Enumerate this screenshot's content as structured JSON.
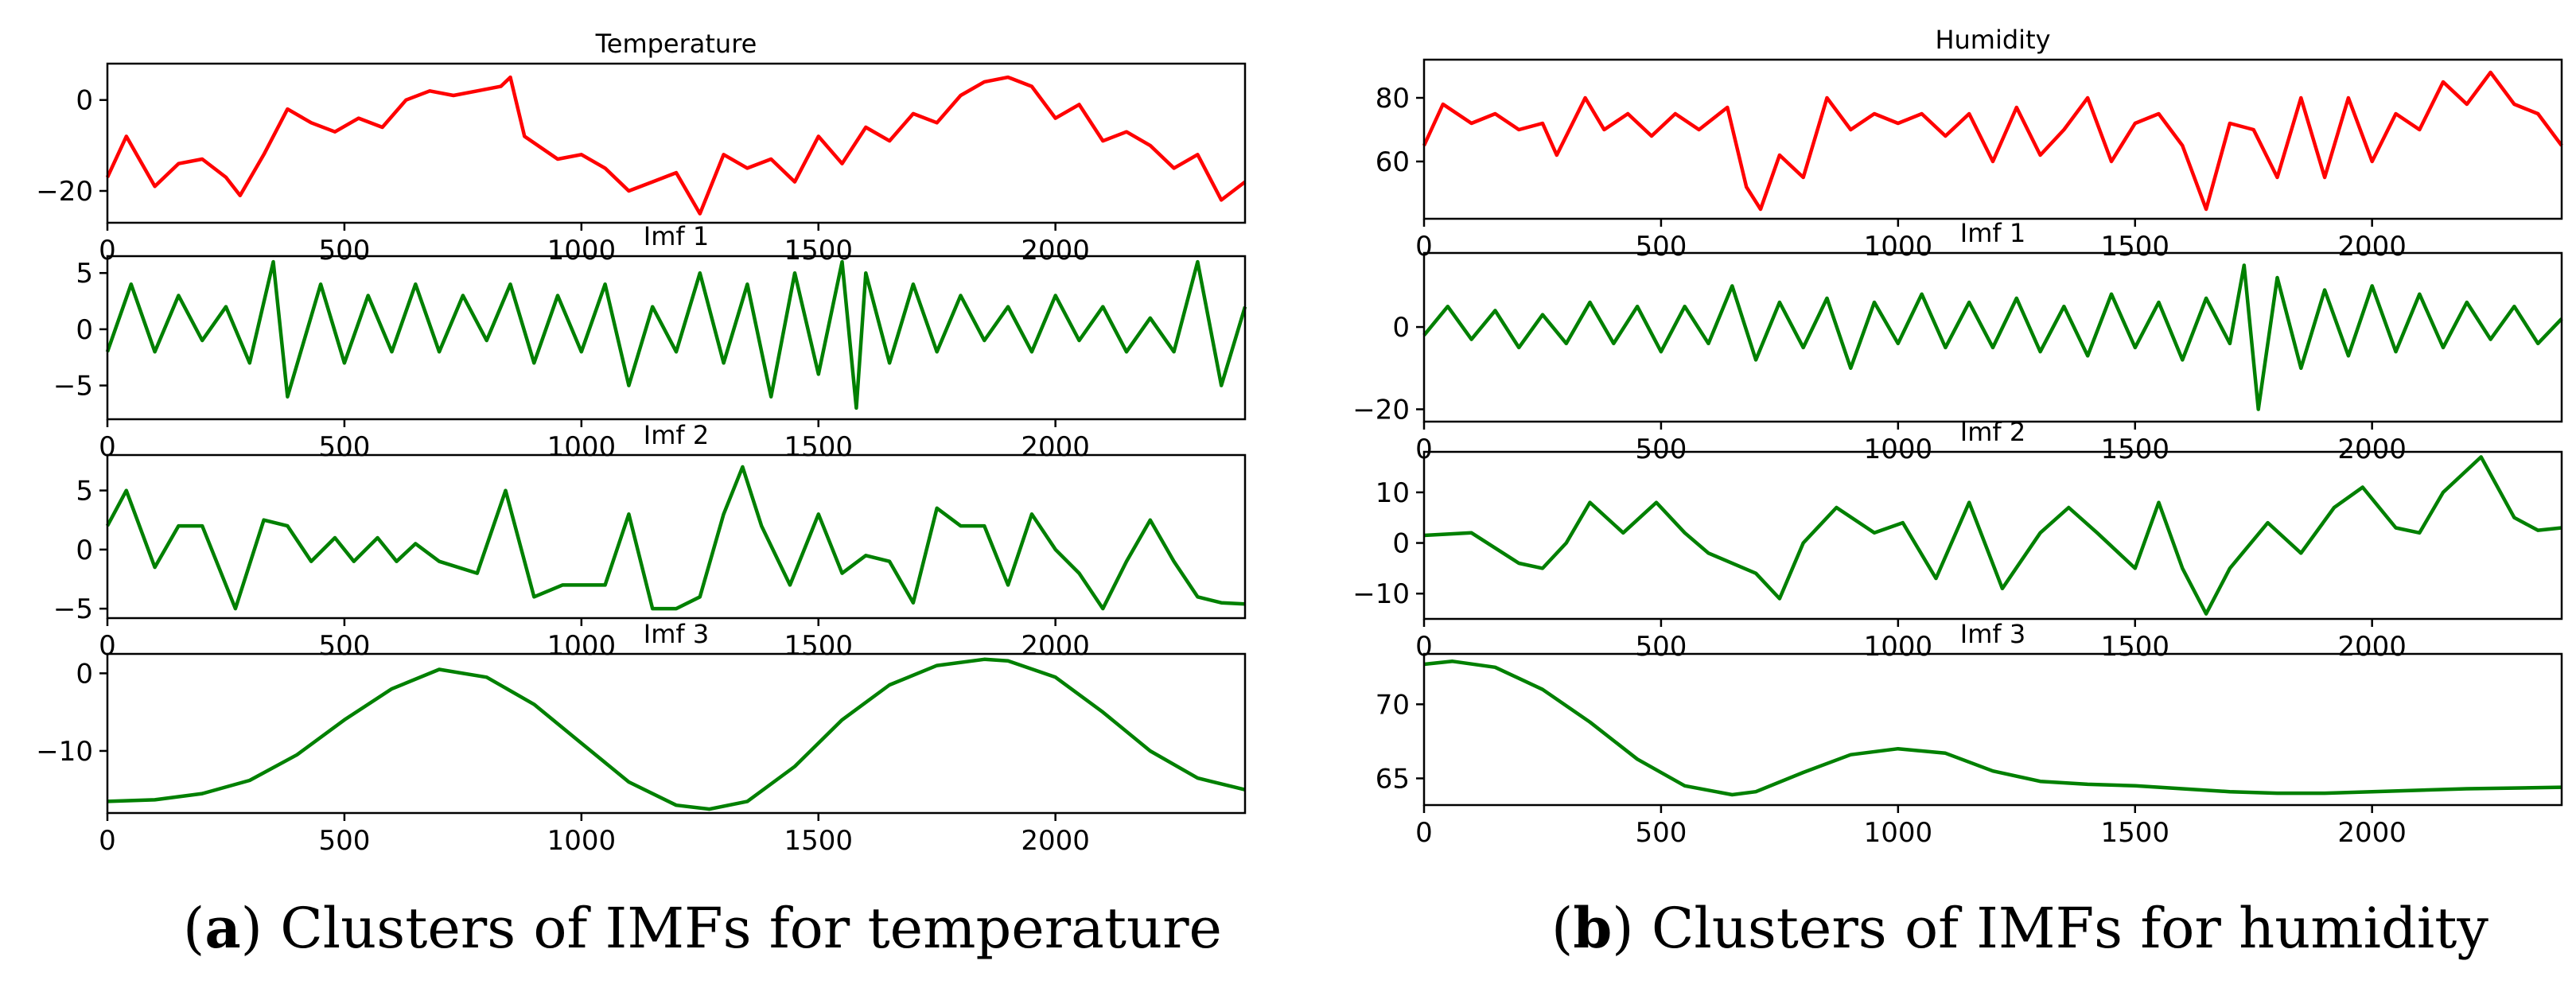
{
  "colors": {
    "signal": "#ff0000",
    "imf": "#008000",
    "axis": "#000000"
  },
  "captions": [
    {
      "label": "a",
      "text": "Clusters of IMFs for temperature"
    },
    {
      "label": "b",
      "text": "Clusters of IMFs for humidity"
    }
  ],
  "chart_data": [
    {
      "type": "line",
      "title": "Temperature",
      "xlabel": "",
      "ylabel": "",
      "xlim": [
        0,
        2400
      ],
      "ylim": [
        -27,
        8
      ],
      "xticks": [
        0,
        500,
        1000,
        1500,
        2000
      ],
      "yticks": [
        0,
        -20
      ],
      "series": [
        {
          "name": "Temperature",
          "color": "#ff0000",
          "x": [
            0,
            40,
            100,
            150,
            200,
            250,
            280,
            330,
            380,
            430,
            480,
            530,
            580,
            630,
            680,
            730,
            780,
            830,
            850,
            880,
            950,
            1000,
            1050,
            1100,
            1150,
            1200,
            1250,
            1300,
            1350,
            1400,
            1450,
            1500,
            1550,
            1600,
            1650,
            1700,
            1750,
            1800,
            1850,
            1900,
            1950,
            2000,
            2050,
            2100,
            2150,
            2200,
            2250,
            2300,
            2350,
            2400
          ],
          "values": [
            -17,
            -8,
            -19,
            -14,
            -13,
            -17,
            -21,
            -12,
            -2,
            -5,
            -7,
            -4,
            -6,
            0,
            2,
            1,
            2,
            3,
            5,
            -8,
            -13,
            -12,
            -15,
            -20,
            -18,
            -16,
            -25,
            -12,
            -15,
            -13,
            -18,
            -8,
            -14,
            -6,
            -9,
            -3,
            -5,
            1,
            4,
            5,
            3,
            -4,
            -1,
            -9,
            -7,
            -10,
            -15,
            -12,
            -22,
            -18
          ]
        }
      ]
    },
    {
      "type": "line",
      "title": "Imf 1",
      "xlabel": "",
      "ylabel": "",
      "xlim": [
        0,
        2400
      ],
      "ylim": [
        -8,
        6.5
      ],
      "xticks": [
        0,
        500,
        1000,
        1500,
        2000
      ],
      "yticks": [
        5,
        0,
        -5
      ],
      "series": [
        {
          "name": "Imf 1",
          "color": "#008000",
          "x": [
            0,
            50,
            100,
            150,
            200,
            250,
            300,
            350,
            380,
            450,
            500,
            550,
            600,
            650,
            700,
            750,
            800,
            850,
            900,
            950,
            1000,
            1050,
            1100,
            1150,
            1200,
            1250,
            1300,
            1350,
            1400,
            1450,
            1500,
            1550,
            1580,
            1600,
            1650,
            1700,
            1750,
            1800,
            1850,
            1900,
            1950,
            2000,
            2050,
            2100,
            2150,
            2200,
            2250,
            2300,
            2350,
            2400
          ],
          "values": [
            -2,
            4,
            -2,
            3,
            -1,
            2,
            -3,
            6,
            -6,
            4,
            -3,
            3,
            -2,
            4,
            -2,
            3,
            -1,
            4,
            -3,
            3,
            -2,
            4,
            -5,
            2,
            -2,
            5,
            -3,
            4,
            -6,
            5,
            -4,
            6,
            -7,
            5,
            -3,
            4,
            -2,
            3,
            -1,
            2,
            -2,
            3,
            -1,
            2,
            -2,
            1,
            -2,
            6,
            -5,
            2
          ]
        }
      ]
    },
    {
      "type": "line",
      "title": "Imf 2",
      "xlabel": "",
      "ylabel": "",
      "xlim": [
        0,
        2400
      ],
      "ylim": [
        -5.8,
        8
      ],
      "xticks": [
        0,
        500,
        1000,
        1500,
        2000
      ],
      "yticks": [
        5,
        0,
        -5
      ],
      "series": [
        {
          "name": "Imf 2",
          "color": "#008000",
          "x": [
            0,
            40,
            100,
            150,
            200,
            270,
            330,
            380,
            430,
            480,
            520,
            570,
            610,
            650,
            700,
            780,
            840,
            900,
            960,
            1000,
            1050,
            1100,
            1150,
            1200,
            1250,
            1300,
            1340,
            1380,
            1440,
            1500,
            1550,
            1600,
            1650,
            1700,
            1750,
            1800,
            1850,
            1900,
            1950,
            2000,
            2050,
            2100,
            2150,
            2200,
            2250,
            2300,
            2350,
            2400
          ],
          "values": [
            2,
            5,
            -1.5,
            2,
            2,
            -5,
            2.5,
            2,
            -1,
            1,
            -1,
            1,
            -1,
            0.5,
            -1,
            -2,
            5,
            -4,
            -3,
            -3,
            -3,
            3,
            -5,
            -5,
            -4,
            3,
            7,
            2,
            -3,
            3,
            -2,
            -0.5,
            -1,
            -4.5,
            3.5,
            2,
            2,
            -3,
            3,
            0,
            -2,
            -5,
            -1,
            2.5,
            -1,
            -4,
            -4.5,
            -4.6
          ]
        }
      ]
    },
    {
      "type": "line",
      "title": "Imf 3",
      "xlabel": "",
      "ylabel": "",
      "xlim": [
        0,
        2400
      ],
      "ylim": [
        -18,
        2.5
      ],
      "xticks": [
        0,
        500,
        1000,
        1500,
        2000
      ],
      "yticks": [
        0,
        -10
      ],
      "series": [
        {
          "name": "Imf 3",
          "color": "#008000",
          "x": [
            0,
            100,
            200,
            300,
            400,
            500,
            600,
            700,
            800,
            900,
            1000,
            1100,
            1200,
            1270,
            1350,
            1450,
            1550,
            1650,
            1750,
            1850,
            1900,
            2000,
            2100,
            2200,
            2300,
            2400
          ],
          "values": [
            -16.5,
            -16.3,
            -15.5,
            -13.8,
            -10.5,
            -6,
            -2,
            0.5,
            -0.5,
            -4,
            -9,
            -14,
            -17,
            -17.5,
            -16.5,
            -12,
            -6,
            -1.5,
            1,
            1.8,
            1.6,
            -0.5,
            -5,
            -10,
            -13.5,
            -15
          ]
        }
      ]
    },
    {
      "type": "line",
      "title": "Humidity",
      "xlabel": "",
      "ylabel": "",
      "xlim": [
        0,
        2400
      ],
      "ylim": [
        42,
        92
      ],
      "xticks": [
        0,
        500,
        1000,
        1500,
        2000
      ],
      "yticks": [
        80,
        60
      ],
      "series": [
        {
          "name": "Humidity",
          "color": "#ff0000",
          "x": [
            0,
            40,
            100,
            150,
            200,
            250,
            280,
            340,
            380,
            430,
            480,
            530,
            580,
            640,
            680,
            710,
            750,
            800,
            850,
            900,
            950,
            1000,
            1050,
            1100,
            1150,
            1200,
            1250,
            1300,
            1350,
            1400,
            1450,
            1500,
            1550,
            1600,
            1650,
            1700,
            1750,
            1800,
            1850,
            1900,
            1950,
            2000,
            2050,
            2100,
            2150,
            2200,
            2250,
            2300,
            2350,
            2400
          ],
          "values": [
            65,
            78,
            72,
            75,
            70,
            72,
            62,
            80,
            70,
            75,
            68,
            75,
            70,
            77,
            52,
            45,
            62,
            55,
            80,
            70,
            75,
            72,
            75,
            68,
            75,
            60,
            77,
            62,
            70,
            80,
            60,
            72,
            75,
            65,
            45,
            72,
            70,
            55,
            80,
            55,
            80,
            60,
            75,
            70,
            85,
            78,
            88,
            78,
            75,
            65
          ]
        }
      ]
    },
    {
      "type": "line",
      "title": "Imf 1",
      "xlabel": "",
      "ylabel": "",
      "xlim": [
        0,
        2400
      ],
      "ylim": [
        -23,
        18
      ],
      "xticks": [
        0,
        500,
        1000,
        1500,
        2000
      ],
      "yticks": [
        0,
        -20
      ],
      "series": [
        {
          "name": "Imf 1",
          "color": "#008000",
          "x": [
            0,
            50,
            100,
            150,
            200,
            250,
            300,
            350,
            400,
            450,
            500,
            550,
            600,
            650,
            700,
            750,
            800,
            850,
            900,
            950,
            1000,
            1050,
            1100,
            1150,
            1200,
            1250,
            1300,
            1350,
            1400,
            1450,
            1500,
            1550,
            1600,
            1650,
            1700,
            1730,
            1760,
            1800,
            1850,
            1900,
            1950,
            2000,
            2050,
            2100,
            2150,
            2200,
            2250,
            2300,
            2350,
            2400
          ],
          "values": [
            -2,
            5,
            -3,
            4,
            -5,
            3,
            -4,
            6,
            -4,
            5,
            -6,
            5,
            -4,
            10,
            -8,
            6,
            -5,
            7,
            -10,
            6,
            -4,
            8,
            -5,
            6,
            -5,
            7,
            -6,
            5,
            -7,
            8,
            -5,
            6,
            -8,
            7,
            -4,
            15,
            -20,
            12,
            -10,
            9,
            -7,
            10,
            -6,
            8,
            -5,
            6,
            -3,
            5,
            -4,
            2
          ]
        }
      ]
    },
    {
      "type": "line",
      "title": "Imf 2",
      "xlabel": "",
      "ylabel": "",
      "xlim": [
        0,
        2400
      ],
      "ylim": [
        -15,
        18
      ],
      "xticks": [
        0,
        500,
        1000,
        1500,
        2000
      ],
      "yticks": [
        10,
        0,
        -10
      ],
      "series": [
        {
          "name": "Imf 2",
          "color": "#008000",
          "x": [
            0,
            100,
            200,
            250,
            300,
            350,
            420,
            490,
            550,
            600,
            700,
            750,
            800,
            870,
            950,
            1010,
            1080,
            1150,
            1220,
            1300,
            1360,
            1420,
            1500,
            1550,
            1600,
            1650,
            1700,
            1780,
            1850,
            1920,
            1980,
            2050,
            2100,
            2150,
            2230,
            2300,
            2350,
            2400
          ],
          "values": [
            1.5,
            2,
            -4,
            -5,
            0,
            8,
            2,
            8,
            2,
            -2,
            -6,
            -11,
            0,
            7,
            2,
            4,
            -7,
            8,
            -9,
            2,
            7,
            2,
            -5,
            8,
            -5,
            -14,
            -5,
            4,
            -2,
            7,
            11,
            3,
            2,
            10,
            17,
            5,
            2.5,
            3
          ]
        }
      ]
    },
    {
      "type": "line",
      "title": "Imf 3",
      "xlabel": "",
      "ylabel": "",
      "xlim": [
        0,
        2400
      ],
      "ylim": [
        63.2,
        73.4
      ],
      "xticks": [
        0,
        500,
        1000,
        1500,
        2000
      ],
      "yticks": [
        70,
        65
      ],
      "series": [
        {
          "name": "Imf 3",
          "color": "#008000",
          "x": [
            0,
            60,
            150,
            250,
            350,
            450,
            550,
            650,
            700,
            800,
            900,
            1000,
            1100,
            1200,
            1300,
            1400,
            1500,
            1600,
            1700,
            1800,
            1900,
            2000,
            2100,
            2200,
            2300,
            2400
          ],
          "values": [
            72.7,
            72.9,
            72.5,
            71,
            68.8,
            66.3,
            64.5,
            63.9,
            64.1,
            65.4,
            66.6,
            67,
            66.7,
            65.5,
            64.8,
            64.6,
            64.5,
            64.3,
            64.1,
            64,
            64,
            64.1,
            64.2,
            64.3,
            64.35,
            64.4
          ]
        }
      ]
    }
  ]
}
